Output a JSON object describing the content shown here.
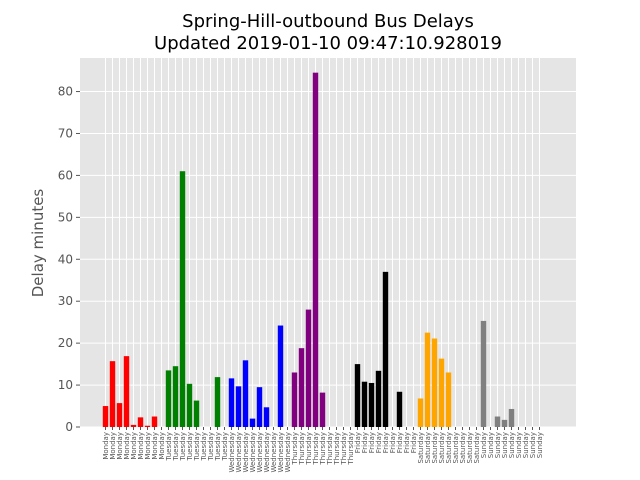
{
  "chart_data": {
    "type": "bar",
    "title": "Spring-Hill-outbound Bus Delays",
    "subtitle": "Updated 2019-01-10 09:47:10.928019",
    "ylabel": "Delay minutes",
    "xlabel": "",
    "ylim": [
      0,
      88
    ],
    "yticks": [
      0,
      10,
      20,
      30,
      40,
      50,
      60,
      70,
      80
    ],
    "grid": true,
    "background": "#e5e5e5",
    "categories": [
      "Monday",
      "Monday",
      "Monday",
      "Monday",
      "Monday",
      "Monday",
      "Monday",
      "Monday",
      "Monday",
      "Tuesday",
      "Tuesday",
      "Tuesday",
      "Tuesday",
      "Tuesday",
      "Tuesday",
      "Tuesday",
      "Tuesday",
      "Tuesday",
      "Wednesday",
      "Wednesday",
      "Wednesday",
      "Wednesday",
      "Wednesday",
      "Wednesday",
      "Wednesday",
      "Wednesday",
      "Wednesday",
      "Thursday",
      "Thursday",
      "Thursday",
      "Thursday",
      "Thursday",
      "Thursday",
      "Thursday",
      "Thursday",
      "Thursday",
      "Friday",
      "Friday",
      "Friday",
      "Friday",
      "Friday",
      "Friday",
      "Friday",
      "Friday",
      "Friday",
      "Saturday",
      "Saturday",
      "Saturday",
      "Saturday",
      "Saturday",
      "Saturday",
      "Saturday",
      "Saturday",
      "Saturday",
      "Sunday",
      "Sunday",
      "Sunday",
      "Sunday",
      "Sunday",
      "Sunday",
      "Sunday",
      "Sunday",
      "Sunday"
    ],
    "values": [
      5,
      15.7,
      5.7,
      16.9,
      0.5,
      2.3,
      0.3,
      2.5,
      0,
      13.5,
      14.5,
      61,
      10.3,
      6.3,
      0,
      0,
      11.9,
      0,
      11.6,
      9.7,
      15.9,
      2,
      9.5,
      4.7,
      0,
      24.2,
      0,
      13,
      18.8,
      28,
      84.5,
      8.2,
      0,
      0,
      0,
      0,
      15,
      10.8,
      10.5,
      13.4,
      37,
      0,
      8.4,
      0,
      0,
      6.8,
      22.5,
      21.1,
      16.3,
      13,
      0,
      0,
      0,
      0,
      25.3,
      0,
      2.5,
      1.7,
      4.3,
      0,
      0,
      0,
      0
    ],
    "colors": [
      "#ff0000",
      "#ff0000",
      "#ff0000",
      "#ff0000",
      "#ff0000",
      "#ff0000",
      "#ff0000",
      "#ff0000",
      "#ff0000",
      "#008000",
      "#008000",
      "#008000",
      "#008000",
      "#008000",
      "#008000",
      "#008000",
      "#008000",
      "#008000",
      "#0000ff",
      "#0000ff",
      "#0000ff",
      "#0000ff",
      "#0000ff",
      "#0000ff",
      "#0000ff",
      "#0000ff",
      "#0000ff",
      "#800080",
      "#800080",
      "#800080",
      "#800080",
      "#800080",
      "#800080",
      "#800080",
      "#800080",
      "#800080",
      "#000000",
      "#000000",
      "#000000",
      "#000000",
      "#000000",
      "#000000",
      "#000000",
      "#000000",
      "#000000",
      "#ffa500",
      "#ffa500",
      "#ffa500",
      "#ffa500",
      "#ffa500",
      "#ffa500",
      "#ffa500",
      "#ffa500",
      "#ffa500",
      "#808080",
      "#808080",
      "#808080",
      "#808080",
      "#808080",
      "#808080",
      "#808080",
      "#808080",
      "#808080"
    ]
  }
}
